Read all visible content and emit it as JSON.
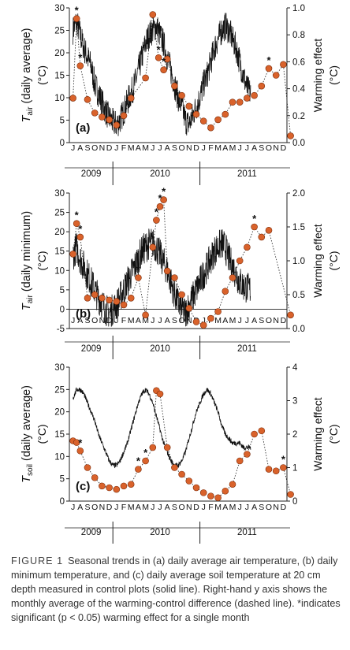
{
  "chart_data": [
    {
      "type": "line",
      "panel_label": "(a)",
      "ylabel_left_main": "T",
      "ylabel_left_sub": "air",
      "ylabel_left_rest": " (daily average)",
      "ylabel_left_unit": "(°C)",
      "ylabel_right": "Warming effect",
      "ylabel_right_unit": "(°C)",
      "ylim_left": [
        0,
        30
      ],
      "yticks_left": [
        0,
        5,
        10,
        15,
        20,
        25,
        30
      ],
      "ylim_right": [
        0.0,
        1.0
      ],
      "yticks_right": [
        "0.0",
        "0.2",
        "0.4",
        "0.6",
        "0.8",
        "1.0"
      ],
      "month_labels": [
        "J",
        "A",
        "S",
        "O",
        "N",
        "D",
        "J",
        "F",
        "M",
        "A",
        "M",
        "J",
        "J",
        "A",
        "S",
        "O",
        "N",
        "D",
        "J",
        "F",
        "M",
        "A",
        "M",
        "J",
        "J",
        "A",
        "S",
        "O",
        "N",
        "D"
      ],
      "year_labels": [
        "2009",
        "2010",
        "2011"
      ],
      "series": [
        {
          "role": "control daily temperature (solid line)",
          "daily_envelope_anchors": [
            [
              0,
              25
            ],
            [
              0.5,
              27
            ],
            [
              1,
              24
            ],
            [
              1.5,
              21
            ],
            [
              2,
              19
            ],
            [
              2.5,
              17
            ],
            [
              3,
              13
            ],
            [
              3.5,
              11
            ],
            [
              4,
              9
            ],
            [
              4.5,
              7
            ],
            [
              5,
              5.5
            ],
            [
              5.5,
              4.5
            ],
            [
              6,
              4
            ],
            [
              6.5,
              5
            ],
            [
              7,
              7
            ],
            [
              7.5,
              9
            ],
            [
              8,
              11
            ],
            [
              8.5,
              13
            ],
            [
              9,
              16
            ],
            [
              9.5,
              19
            ],
            [
              10,
              22
            ],
            [
              10.5,
              24
            ],
            [
              11,
              25
            ],
            [
              11.5,
              26
            ],
            [
              12,
              24
            ],
            [
              12.5,
              22
            ],
            [
              13,
              19
            ],
            [
              13.5,
              16
            ],
            [
              14,
              13
            ],
            [
              14.5,
              10
            ],
            [
              15,
              8
            ],
            [
              15.5,
              5
            ],
            [
              16,
              4
            ],
            [
              16.5,
              6
            ],
            [
              17,
              8
            ],
            [
              17.5,
              10
            ],
            [
              18,
              13
            ],
            [
              18.5,
              15
            ],
            [
              19,
              18
            ],
            [
              19.5,
              21
            ],
            [
              20,
              23
            ],
            [
              20.5,
              25
            ],
            [
              21,
              26
            ],
            [
              21.5,
              25
            ],
            [
              22,
              23
            ],
            [
              22.5,
              21
            ],
            [
              23,
              18
            ],
            [
              23.5,
              15
            ],
            [
              24,
              12
            ],
            [
              24.5,
              11
            ]
          ]
        },
        {
          "role": "monthly warming effect (dashed line with dots)",
          "values": [
            0.33,
            0.92,
            0.57,
            0.32,
            0.22,
            0.19,
            0.17,
            0.13,
            0.2,
            0.33,
            0.48,
            0.95,
            0.63,
            0.54,
            0.62,
            0.42,
            0.35,
            0.27,
            0.21,
            0.16,
            0.11,
            0.17,
            0.21,
            0.3,
            0.3,
            0.33,
            0.35,
            0.42,
            0.55,
            0.5,
            0.58,
            0.05
          ],
          "month_index": [
            0,
            0.5,
            1,
            2,
            3,
            4,
            5,
            6,
            7,
            8,
            10,
            11,
            11.8,
            12.5,
            13,
            14,
            15,
            16,
            17,
            18,
            19,
            20,
            21,
            22,
            23,
            24,
            25,
            26,
            27,
            28,
            29,
            30
          ],
          "significant_markers": [
            0.5,
            1,
            11.8,
            12.5,
            27
          ]
        }
      ]
    },
    {
      "type": "line",
      "panel_label": "(b)",
      "ylabel_left_main": "T",
      "ylabel_left_sub": "air",
      "ylabel_left_rest": " (daily minimum)",
      "ylabel_left_unit": "(°C)",
      "ylabel_right": "Warming effect",
      "ylabel_right_unit": "(°C)",
      "ylim_left": [
        -5,
        30
      ],
      "yticks_left": [
        -5,
        0,
        5,
        10,
        15,
        20,
        25,
        30
      ],
      "ylim_right": [
        0.0,
        2.0
      ],
      "yticks_right": [
        "0.0",
        "0.5",
        "1.0",
        "1.5",
        "2.0"
      ],
      "month_labels": [
        "J",
        "A",
        "S",
        "O",
        "N",
        "D",
        "J",
        "F",
        "M",
        "A",
        "M",
        "J",
        "J",
        "A",
        "S",
        "O",
        "N",
        "D",
        "J",
        "F",
        "M",
        "A",
        "M",
        "J",
        "J",
        "A",
        "S",
        "O",
        "N",
        "D"
      ],
      "year_labels": [
        "2009",
        "2010",
        "2011"
      ],
      "series": [
        {
          "role": "control daily temperature (solid line)",
          "daily_envelope_anchors": [
            [
              0,
              14
            ],
            [
              0.5,
              16
            ],
            [
              1,
              13
            ],
            [
              1.5,
              11
            ],
            [
              2,
              9
            ],
            [
              2.5,
              7
            ],
            [
              3,
              5
            ],
            [
              3.5,
              3
            ],
            [
              4,
              1.5
            ],
            [
              4.5,
              0
            ],
            [
              5,
              -1
            ],
            [
              5.5,
              0
            ],
            [
              6,
              1
            ],
            [
              6.5,
              3
            ],
            [
              7,
              5
            ],
            [
              7.5,
              7
            ],
            [
              8,
              9
            ],
            [
              8.5,
              11
            ],
            [
              9,
              13
            ],
            [
              9.5,
              15
            ],
            [
              10,
              16
            ],
            [
              10.5,
              17
            ],
            [
              11,
              17
            ],
            [
              11.5,
              16
            ],
            [
              12,
              14
            ],
            [
              12.5,
              12
            ],
            [
              13,
              10
            ],
            [
              13.5,
              7
            ],
            [
              14,
              4
            ],
            [
              14.5,
              1.5
            ],
            [
              15,
              0
            ],
            [
              15.5,
              -1
            ],
            [
              16,
              1
            ],
            [
              16.5,
              3
            ],
            [
              17,
              5
            ],
            [
              17.5,
              7
            ],
            [
              18,
              9
            ],
            [
              18.5,
              11
            ],
            [
              19,
              13
            ],
            [
              19.5,
              15
            ],
            [
              20,
              16
            ],
            [
              20.5,
              17
            ],
            [
              21,
              16
            ],
            [
              21.5,
              13
            ],
            [
              22,
              11
            ],
            [
              22.5,
              9
            ],
            [
              23,
              7
            ],
            [
              23.5,
              6
            ],
            [
              24,
              5.5
            ],
            [
              24.5,
              5
            ]
          ]
        },
        {
          "role": "monthly warming effect (dashed line with dots)",
          "values": [
            1.1,
            1.55,
            1.35,
            0.45,
            0.5,
            0.45,
            0.42,
            0.4,
            0.35,
            0.45,
            0.75,
            0.2,
            1.2,
            1.6,
            1.8,
            1.9,
            0.85,
            0.75,
            0.5,
            0.3,
            0.1,
            0.05,
            0.15,
            0.25,
            0.55,
            0.75,
            1.0,
            1.2,
            1.5,
            1.35,
            1.45,
            0.2
          ],
          "month_index": [
            0,
            0.5,
            1,
            2,
            3,
            4,
            5,
            6,
            7,
            8,
            9,
            10,
            11,
            11.5,
            12,
            12.5,
            13,
            14,
            15,
            16,
            17,
            18,
            19,
            20,
            21,
            22,
            23,
            24,
            25,
            26,
            27,
            30
          ],
          "significant_markers": [
            0.5,
            1,
            9,
            11,
            11.5,
            12,
            12.5,
            25
          ]
        }
      ]
    },
    {
      "type": "line",
      "panel_label": "(c)",
      "ylabel_left_main": "T",
      "ylabel_left_sub": "soil",
      "ylabel_left_rest": " (daily average)",
      "ylabel_left_unit": "(°C)",
      "ylabel_right": "Warming effect",
      "ylabel_right_unit": "(°C)",
      "ylim_left": [
        0,
        30
      ],
      "yticks_left": [
        0,
        5,
        10,
        15,
        20,
        25,
        30
      ],
      "ylim_right": [
        0,
        4
      ],
      "yticks_right": [
        "0",
        "1",
        "2",
        "3",
        "4"
      ],
      "month_labels": [
        "J",
        "A",
        "S",
        "O",
        "N",
        "D",
        "J",
        "F",
        "M",
        "A",
        "M",
        "J",
        "J",
        "A",
        "S",
        "O",
        "N",
        "D",
        "J",
        "F",
        "M",
        "A",
        "M",
        "J",
        "J",
        "A",
        "S",
        "O",
        "N",
        "D"
      ],
      "year_labels": [
        "2009",
        "2010",
        "2011"
      ],
      "series": [
        {
          "role": "control daily temperature (solid line)",
          "daily_envelope_anchors": [
            [
              0,
              23
            ],
            [
              0.5,
              25
            ],
            [
              1,
              25
            ],
            [
              1.5,
              24
            ],
            [
              2,
              22
            ],
            [
              2.5,
              20
            ],
            [
              3,
              18
            ],
            [
              3.5,
              15
            ],
            [
              4,
              13
            ],
            [
              4.5,
              11
            ],
            [
              5,
              9
            ],
            [
              5.5,
              8
            ],
            [
              6,
              8
            ],
            [
              6.5,
              9
            ],
            [
              7,
              11
            ],
            [
              7.5,
              13
            ],
            [
              8,
              16
            ],
            [
              8.5,
              19
            ],
            [
              9,
              22
            ],
            [
              9.5,
              24
            ],
            [
              10,
              25
            ],
            [
              10.5,
              24
            ],
            [
              11,
              22
            ],
            [
              11.5,
              19
            ],
            [
              12,
              16
            ],
            [
              12.5,
              13
            ],
            [
              13,
              11
            ],
            [
              13.5,
              9
            ],
            [
              14,
              8
            ],
            [
              14.5,
              8
            ],
            [
              15,
              9
            ],
            [
              15.5,
              11
            ],
            [
              16,
              14
            ],
            [
              16.5,
              17
            ],
            [
              17,
              20
            ],
            [
              17.5,
              22
            ],
            [
              18,
              24
            ],
            [
              18.5,
              25
            ],
            [
              19,
              24
            ],
            [
              19.5,
              22
            ],
            [
              20,
              20
            ],
            [
              20.5,
              17
            ],
            [
              21,
              15
            ],
            [
              21.5,
              14
            ],
            [
              22,
              13
            ],
            [
              22.5,
              13
            ],
            [
              23,
              13
            ],
            [
              23.5,
              12
            ],
            [
              24,
              12
            ],
            [
              24.5,
              12
            ]
          ]
        },
        {
          "role": "monthly warming effect (dashed line with dots)",
          "values": [
            1.8,
            1.75,
            1.5,
            1.0,
            0.7,
            0.45,
            0.4,
            0.35,
            0.45,
            0.5,
            0.95,
            1.2,
            1.6,
            3.3,
            3.2,
            1.6,
            1.0,
            0.8,
            0.6,
            0.4,
            0.25,
            0.15,
            0.1,
            0.3,
            0.5,
            1.2,
            1.4,
            2.0,
            2.1,
            0.95,
            0.9,
            1.0,
            0.2
          ],
          "month_index": [
            0,
            0.5,
            1,
            2,
            3,
            4,
            5,
            6,
            7,
            8,
            9,
            10,
            11,
            11.5,
            12,
            13,
            14,
            15,
            16,
            17,
            18,
            19,
            20,
            21,
            22,
            23,
            24,
            25,
            26,
            27,
            28,
            29,
            30
          ],
          "significant_markers": [
            1,
            9,
            10,
            29
          ]
        }
      ]
    }
  ],
  "caption": {
    "label": "FIGURE 1",
    "text": "Seasonal trends in (a) daily average air temperature, (b) daily minimum temperature, and (c) daily average soil temperature at 20 cm depth measured in control plots (solid line). Right-hand y axis shows the monthly average of the warming-control difference (dashed line). *indicates significant (p < 0.05) warming effect for a single month"
  },
  "colors": {
    "dot_fill": "#d9622b",
    "dot_stroke": "#7a2a08",
    "line": "#111111"
  }
}
